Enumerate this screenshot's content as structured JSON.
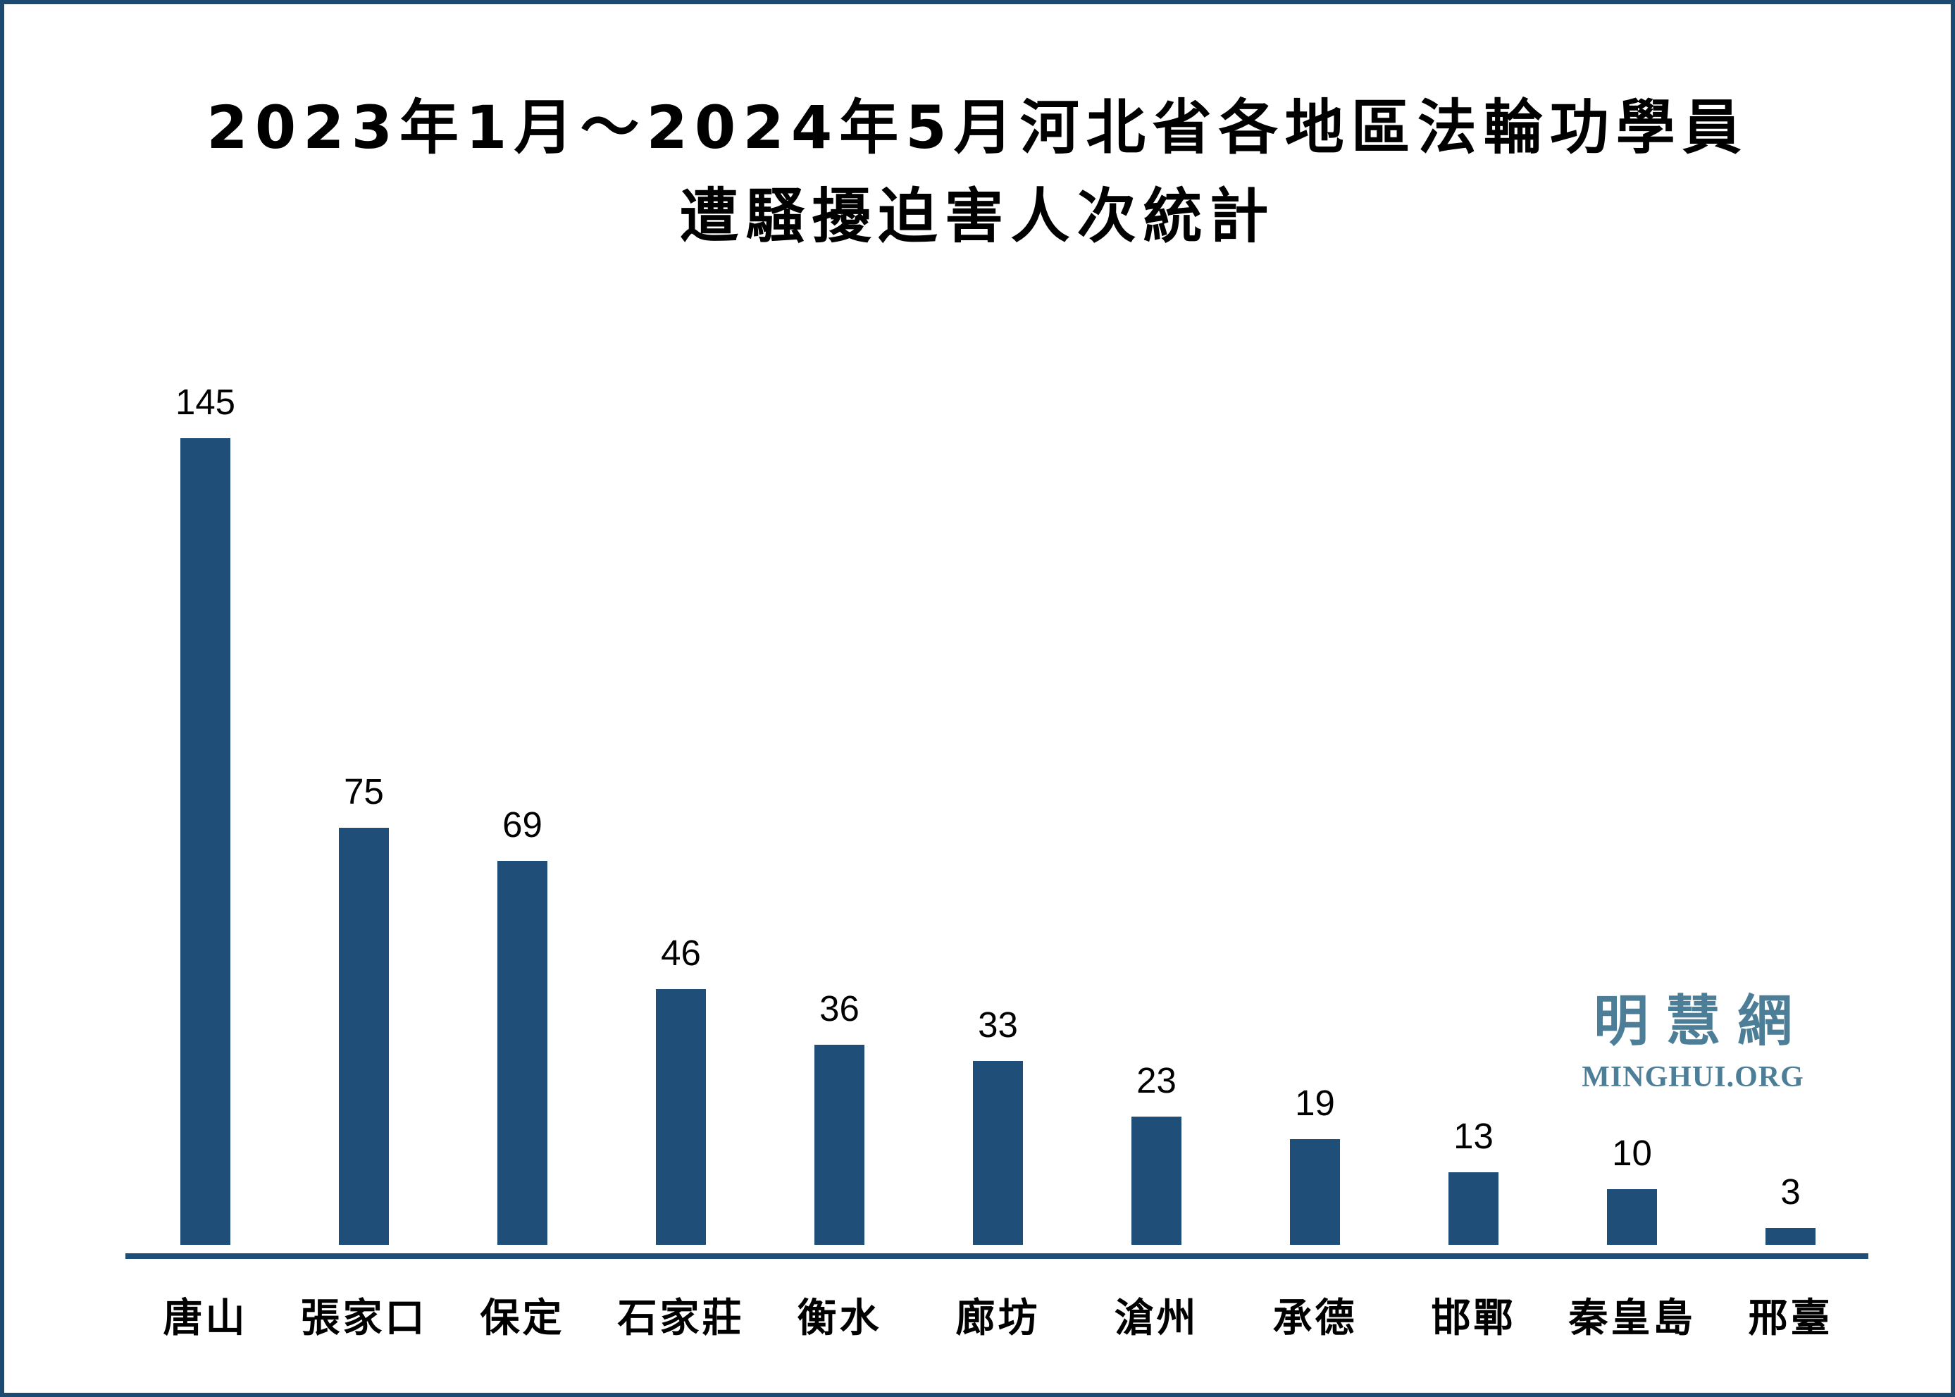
{
  "title": {
    "line1": "2023年1月～2024年5月河北省各地區法輪功學員",
    "line2": "遭騷擾迫害人次統計"
  },
  "watermark": {
    "chinese": "明慧網",
    "english": "MINGHUI.ORG"
  },
  "colors": {
    "bar": "#1F4E79",
    "border": "#1C4A70",
    "watermark": "#4D7E98",
    "background": "#FFFFFF",
    "text": "#000000"
  },
  "chart_data": {
    "type": "bar",
    "title": "2023年1月～2024年5月河北省各地區法輪功學員遭騷擾迫害人次統計",
    "categories": [
      "唐山",
      "張家口",
      "保定",
      "石家莊",
      "衡水",
      "廊坊",
      "滄州",
      "承德",
      "邯鄲",
      "秦皇島",
      "邢臺"
    ],
    "values": [
      145,
      75,
      69,
      46,
      36,
      33,
      23,
      19,
      13,
      10,
      3
    ],
    "xlabel": "",
    "ylabel": "",
    "ylim": [
      0,
      145
    ],
    "grid": false,
    "legend": false,
    "data_labels": true,
    "bar_color": "#1F4E79"
  }
}
